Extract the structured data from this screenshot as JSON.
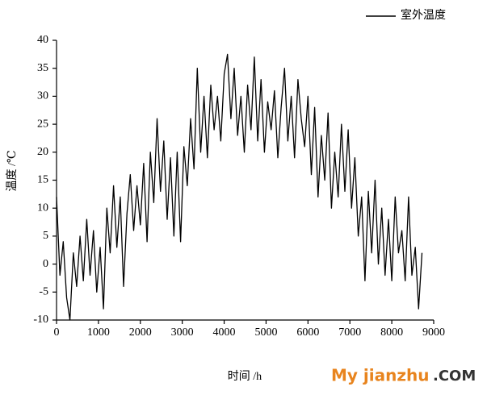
{
  "chart_data": {
    "type": "line",
    "x_label": "时间 /h",
    "y_label": "温度 /℃",
    "x": [
      0,
      80,
      160,
      240,
      320,
      400,
      480,
      560,
      640,
      720,
      800,
      880,
      960,
      1040,
      1120,
      1200,
      1280,
      1360,
      1440,
      1520,
      1600,
      1680,
      1760,
      1840,
      1920,
      2000,
      2080,
      2160,
      2240,
      2320,
      2400,
      2480,
      2560,
      2640,
      2720,
      2800,
      2880,
      2960,
      3040,
      3120,
      3200,
      3280,
      3360,
      3440,
      3520,
      3600,
      3680,
      3760,
      3840,
      3920,
      4000,
      4080,
      4160,
      4240,
      4320,
      4400,
      4480,
      4560,
      4640,
      4720,
      4800,
      4880,
      4960,
      5040,
      5120,
      5200,
      5280,
      5360,
      5440,
      5520,
      5600,
      5680,
      5760,
      5840,
      5920,
      6000,
      6080,
      6160,
      6240,
      6320,
      6400,
      6480,
      6560,
      6640,
      6720,
      6800,
      6880,
      6960,
      7040,
      7120,
      7200,
      7280,
      7360,
      7440,
      7520,
      7600,
      7680,
      7760,
      7840,
      7920,
      8000,
      8080,
      8160,
      8240,
      8320,
      8400,
      8480,
      8560,
      8640,
      8720
    ],
    "series": [
      {
        "name": "室外温度",
        "color": "#000000",
        "values": [
          12,
          -2,
          4,
          -6,
          -10,
          2,
          -4,
          5,
          -3,
          8,
          -2,
          6,
          -5,
          3,
          -8,
          10,
          2,
          14,
          3,
          12,
          -4,
          9,
          16,
          6,
          14,
          7,
          18,
          4,
          20,
          11,
          26,
          13,
          22,
          8,
          19,
          5,
          20,
          4,
          21,
          14,
          26,
          17,
          35,
          20,
          30,
          19,
          32,
          24,
          30,
          22,
          34,
          37.5,
          26,
          35,
          23,
          30,
          20,
          32,
          24,
          37,
          22,
          33,
          20,
          29,
          24,
          31,
          19,
          28,
          35,
          22,
          30,
          19,
          33,
          26,
          21,
          30,
          16,
          28,
          12,
          23,
          15,
          27,
          10,
          20,
          12,
          25,
          13,
          24,
          10,
          19,
          5,
          12,
          -3,
          13,
          2,
          15,
          0,
          10,
          -2,
          8,
          -3,
          12,
          2,
          6,
          -3,
          12,
          -2,
          3,
          -8,
          2
        ]
      }
    ],
    "xlim": [
      0,
      9000
    ],
    "xticks": [
      0,
      1000,
      2000,
      3000,
      4000,
      5000,
      6000,
      7000,
      8000,
      9000
    ],
    "ylim": [
      -10,
      40
    ],
    "yticks": [
      -10,
      -5,
      0,
      5,
      10,
      15,
      20,
      25,
      30,
      35,
      40
    ],
    "legend": "top-right"
  },
  "watermark": {
    "brand": "My jianzhu",
    "suffix": ".COM"
  }
}
